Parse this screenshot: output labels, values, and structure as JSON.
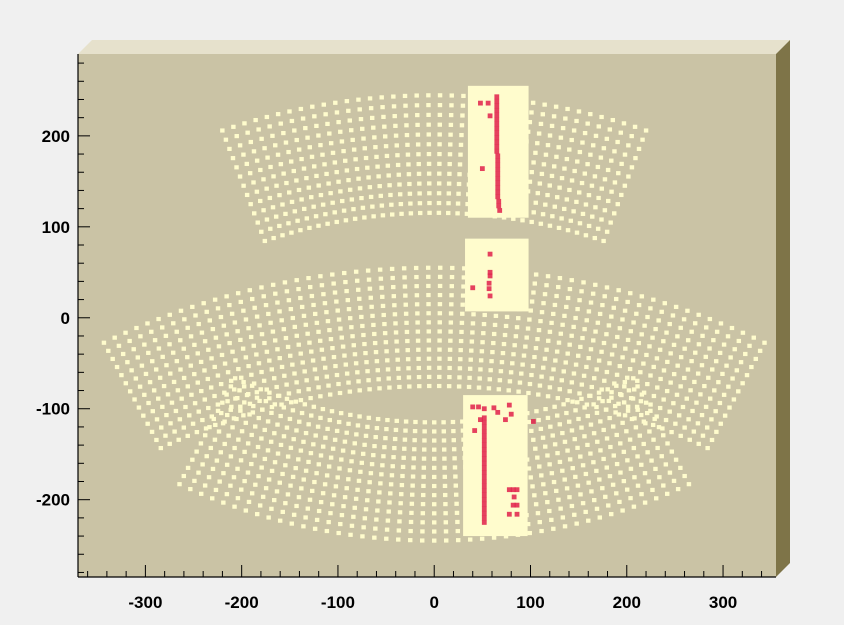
{
  "chart_data": {
    "type": "scatter",
    "title": "",
    "xlabel": "",
    "ylabel": "",
    "xlim": [
      -370,
      355
    ],
    "ylim": [
      -285,
      290
    ],
    "x_ticks": [
      -300,
      -200,
      -100,
      0,
      100,
      200,
      300
    ],
    "x_tick_labels": [
      "-300",
      "-200",
      "-100",
      "0",
      "100",
      "200",
      "300"
    ],
    "y_ticks": [
      -200,
      -100,
      0,
      100,
      200
    ],
    "y_tick_labels": [
      "-200",
      "-100",
      "0",
      "100",
      "200"
    ],
    "grid": false,
    "colors": {
      "frame": "#cac3a5",
      "frame_bevel_light": "#e6e1cc",
      "frame_bevel_dark": "#7e7448",
      "cell": "#fffccd",
      "hit": "#e0204a",
      "axis": "#000000"
    },
    "arcs": [
      {
        "name": "upper",
        "center": [
          0,
          -400
        ],
        "r_inner": 510,
        "r_outer": 650,
        "angle_range": [
          -20.5,
          20.5
        ],
        "rows": 13,
        "cols": 38
      },
      {
        "name": "middle",
        "center": [
          0,
          -700
        ],
        "r_inner": 620,
        "r_outer": 760,
        "angle_range": [
          -27.5,
          27.5
        ],
        "rows": 14,
        "cols": 58
      },
      {
        "name": "lower",
        "center": [
          0,
          350
        ],
        "r_inner": 460,
        "r_outer": 600,
        "angle_range": [
          -27,
          27
        ],
        "rows": 14,
        "cols": 45
      }
    ],
    "highlighted_blocks": [
      {
        "x": [
          35,
          98
        ],
        "y": [
          110,
          255
        ]
      },
      {
        "x": [
          32,
          98
        ],
        "y": [
          7,
          87
        ]
      },
      {
        "x": [
          30,
          97
        ],
        "y": [
          -240,
          -85
        ]
      }
    ],
    "hits": [
      {
        "x": 65,
        "y": 243
      },
      {
        "x": 65,
        "y": 238
      },
      {
        "x": 65,
        "y": 233
      },
      {
        "x": 65,
        "y": 228
      },
      {
        "x": 65,
        "y": 223
      },
      {
        "x": 65,
        "y": 218
      },
      {
        "x": 65,
        "y": 213
      },
      {
        "x": 65,
        "y": 208
      },
      {
        "x": 65,
        "y": 203
      },
      {
        "x": 65,
        "y": 198
      },
      {
        "x": 65,
        "y": 193
      },
      {
        "x": 65,
        "y": 188
      },
      {
        "x": 65,
        "y": 183
      },
      {
        "x": 66,
        "y": 178
      },
      {
        "x": 66,
        "y": 173
      },
      {
        "x": 66,
        "y": 168
      },
      {
        "x": 66,
        "y": 163
      },
      {
        "x": 66,
        "y": 158
      },
      {
        "x": 66,
        "y": 153
      },
      {
        "x": 66,
        "y": 148
      },
      {
        "x": 66,
        "y": 143
      },
      {
        "x": 66,
        "y": 138
      },
      {
        "x": 66,
        "y": 133
      },
      {
        "x": 67,
        "y": 128
      },
      {
        "x": 67,
        "y": 123
      },
      {
        "x": 68,
        "y": 118
      },
      {
        "x": 48,
        "y": 236
      },
      {
        "x": 56,
        "y": 236
      },
      {
        "x": 58,
        "y": 222
      },
      {
        "x": 50,
        "y": 164
      },
      {
        "x": 58,
        "y": 70
      },
      {
        "x": 58,
        "y": 50
      },
      {
        "x": 58,
        "y": 46
      },
      {
        "x": 57,
        "y": 38
      },
      {
        "x": 57,
        "y": 32
      },
      {
        "x": 58,
        "y": 24
      },
      {
        "x": 40,
        "y": 33
      },
      {
        "x": 40,
        "y": -98
      },
      {
        "x": 46,
        "y": -98
      },
      {
        "x": 52,
        "y": -100
      },
      {
        "x": 62,
        "y": -99
      },
      {
        "x": 78,
        "y": -96
      },
      {
        "x": 80,
        "y": -106
      },
      {
        "x": 66,
        "y": -104
      },
      {
        "x": 74,
        "y": -112
      },
      {
        "x": 48,
        "y": -112
      },
      {
        "x": 42,
        "y": -124
      },
      {
        "x": 103,
        "y": -114
      },
      {
        "x": 52,
        "y": -110
      },
      {
        "x": 52,
        "y": -115
      },
      {
        "x": 52,
        "y": -120
      },
      {
        "x": 52,
        "y": -125
      },
      {
        "x": 52,
        "y": -130
      },
      {
        "x": 52,
        "y": -135
      },
      {
        "x": 52,
        "y": -140
      },
      {
        "x": 52,
        "y": -145
      },
      {
        "x": 52,
        "y": -150
      },
      {
        "x": 52,
        "y": -155
      },
      {
        "x": 52,
        "y": -160
      },
      {
        "x": 52,
        "y": -165
      },
      {
        "x": 52,
        "y": -170
      },
      {
        "x": 52,
        "y": -175
      },
      {
        "x": 52,
        "y": -180
      },
      {
        "x": 52,
        "y": -185
      },
      {
        "x": 52,
        "y": -190
      },
      {
        "x": 52,
        "y": -195
      },
      {
        "x": 52,
        "y": -200
      },
      {
        "x": 52,
        "y": -205
      },
      {
        "x": 52,
        "y": -210
      },
      {
        "x": 52,
        "y": -215
      },
      {
        "x": 52,
        "y": -220
      },
      {
        "x": 52,
        "y": -225
      },
      {
        "x": 78,
        "y": -189
      },
      {
        "x": 82,
        "y": -189
      },
      {
        "x": 86,
        "y": -189
      },
      {
        "x": 83,
        "y": -197
      },
      {
        "x": 82,
        "y": -206
      },
      {
        "x": 86,
        "y": -206
      },
      {
        "x": 78,
        "y": -216
      },
      {
        "x": 86,
        "y": -216
      }
    ]
  }
}
